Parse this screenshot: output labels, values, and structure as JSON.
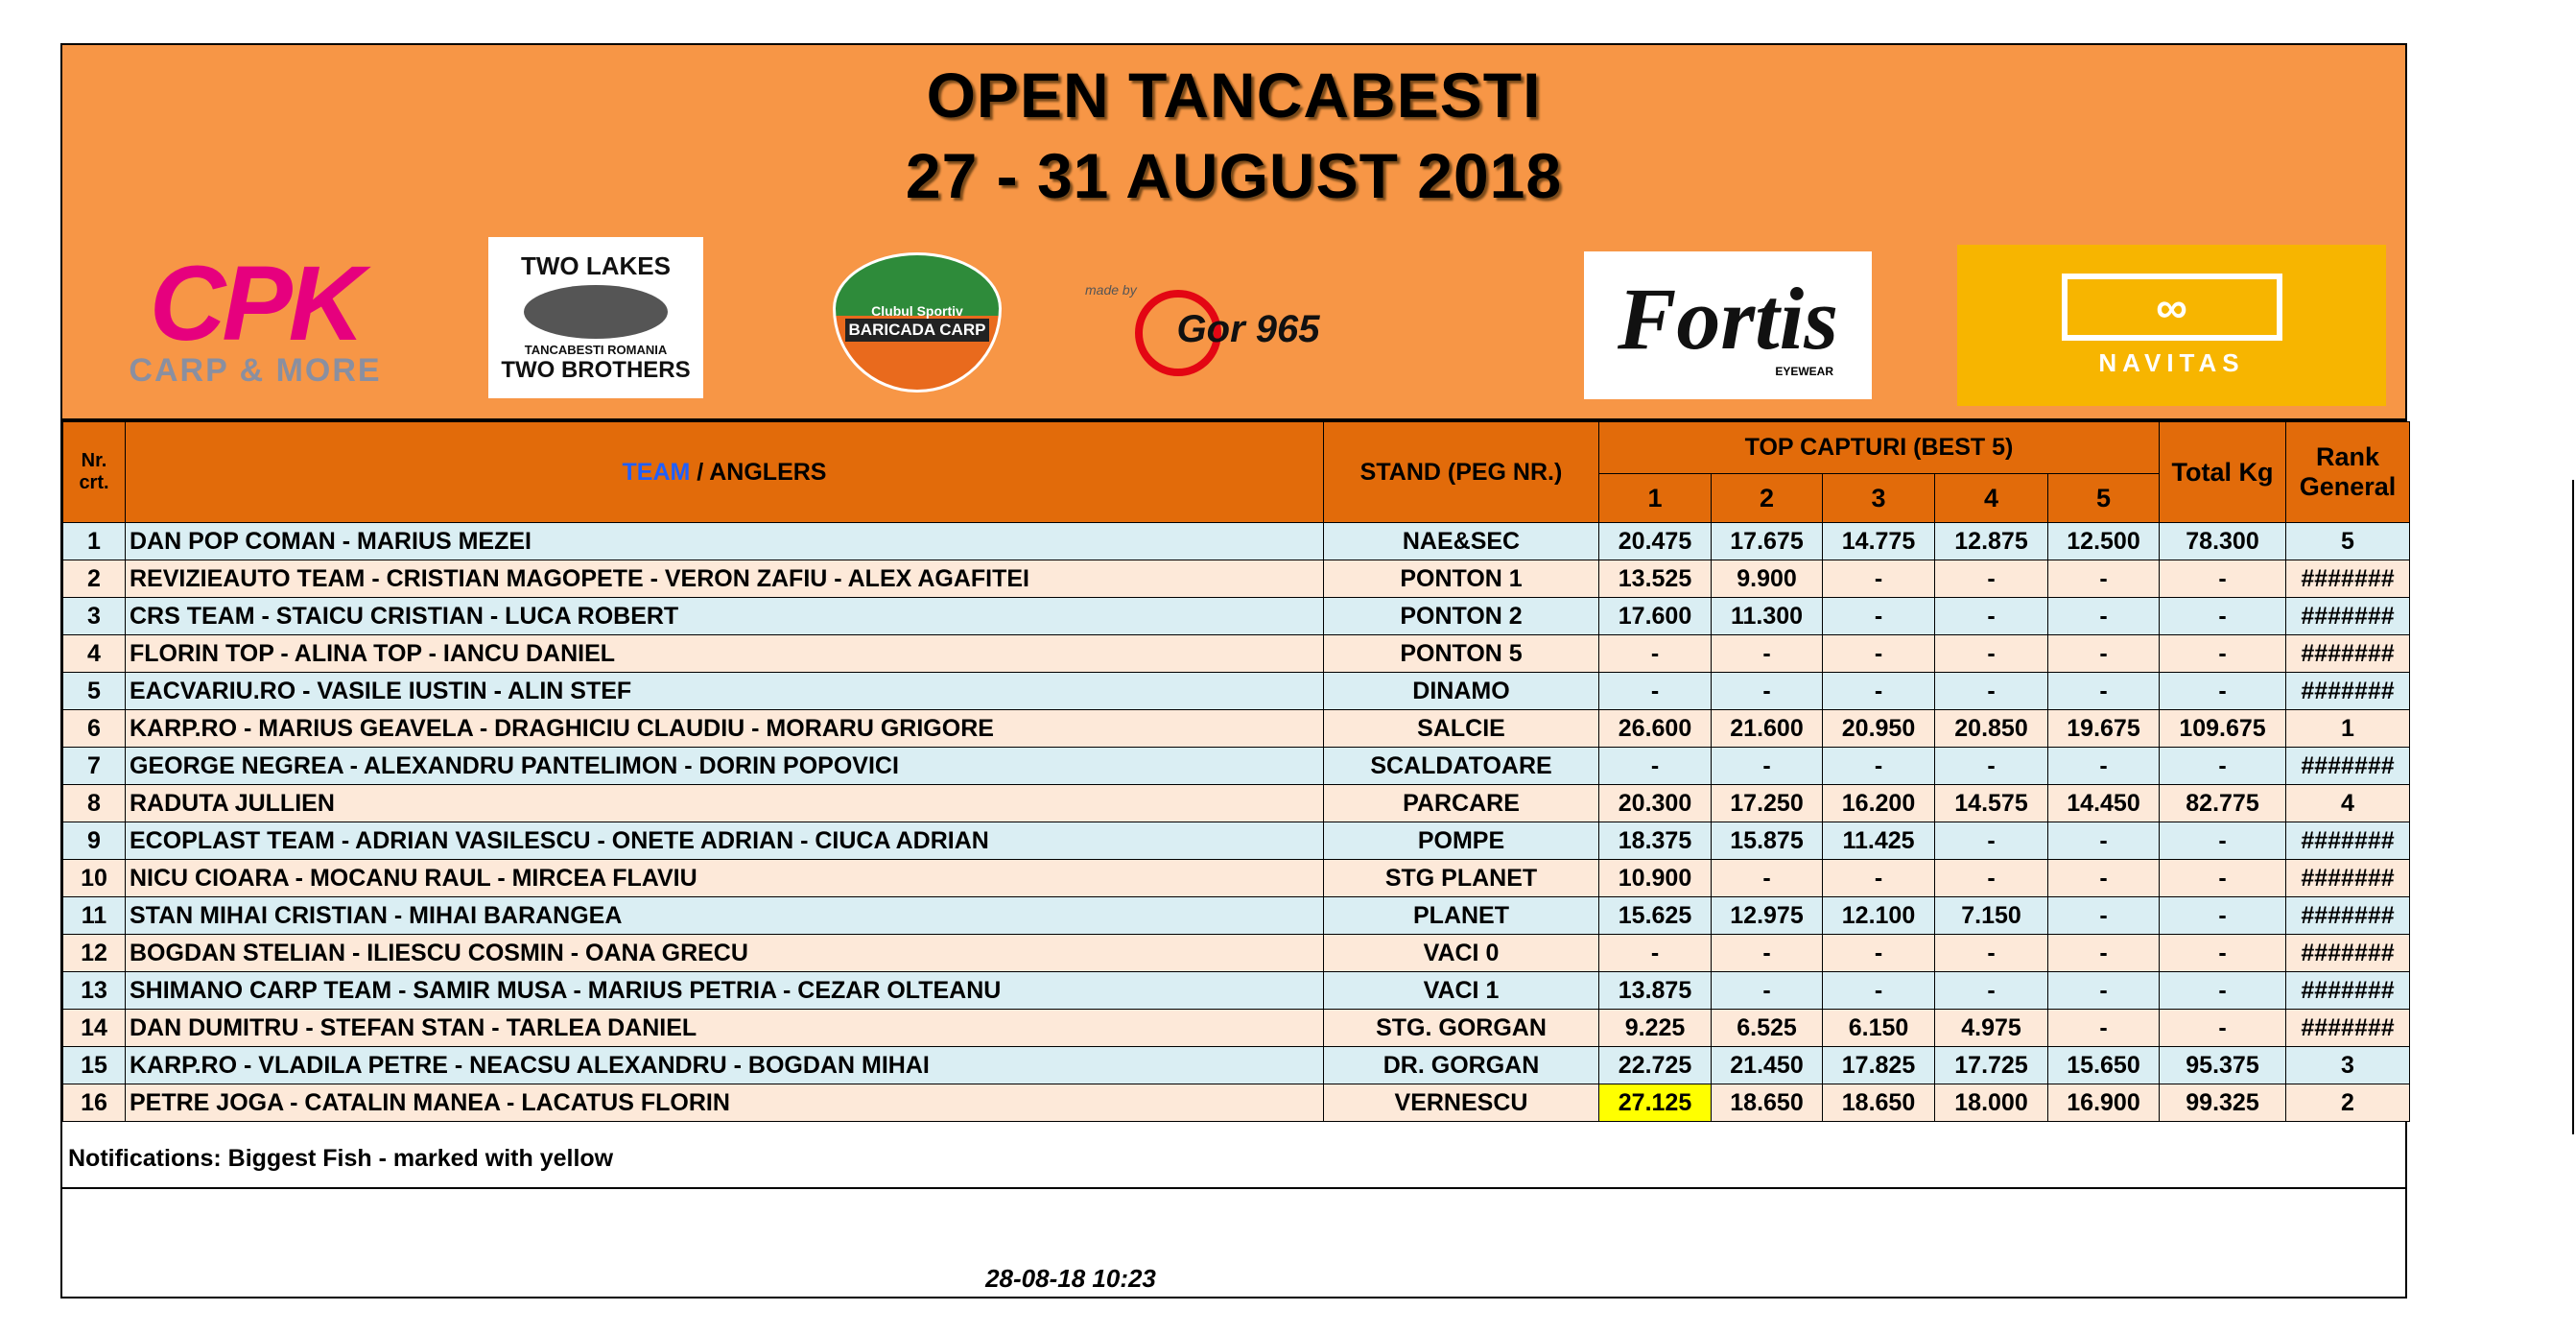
{
  "title": {
    "line1": "OPEN TANCABESTI",
    "line2": "27 - 31 AUGUST 2018"
  },
  "logos": {
    "cpk": {
      "main": "CPK",
      "sub": "CARP & MORE"
    },
    "two_lakes": {
      "top": "TWO LAKES",
      "mid": "TANCABESTI ROMANIA",
      "bottom": "TWO BROTHERS"
    },
    "baricada": {
      "top": "Clubul Sportiv",
      "main": "BARICADA CARP"
    },
    "gor": {
      "pre": "made by",
      "main": "Gor 965"
    },
    "fortis": {
      "main": "Fortis",
      "sub": "EYEWEAR"
    },
    "navitas": {
      "main": "NAVITAS"
    }
  },
  "colors": {
    "header": "#E26B0A",
    "banner": "#F79646",
    "row_blue": "#DAEEF3",
    "row_peach": "#FDE9D9",
    "highlight": "#FFFF00",
    "team_word": "#1F5FFF"
  },
  "table": {
    "headers": {
      "nr": "Nr. crt.",
      "team": "TEAM",
      "anglers": " / ANGLERS",
      "stand": "STAND (PEG NR.)",
      "top": "TOP CAPTURI (BEST 5)",
      "catches": [
        "1",
        "2",
        "3",
        "4",
        "5"
      ],
      "total": "Total Kg",
      "rank": "Rank General"
    },
    "rows": [
      {
        "nr": "1",
        "team": "DAN POP COMAN - MARIUS MEZEI",
        "stand": "NAE&SEC",
        "c": [
          "20.475",
          "17.675",
          "14.775",
          "12.875",
          "12.500"
        ],
        "total": "78.300",
        "rank": "5"
      },
      {
        "nr": "2",
        "team": "REVIZIEAUTO TEAM - CRISTIAN MAGOPETE - VERON ZAFIU - ALEX AGAFITEI",
        "stand": "PONTON 1",
        "c": [
          "13.525",
          "9.900",
          "-",
          "-",
          "-"
        ],
        "total": "-",
        "rank": "#######"
      },
      {
        "nr": "3",
        "team": "CRS TEAM - STAICU CRISTIAN  - LUCA ROBERT",
        "stand": "PONTON 2",
        "c": [
          "17.600",
          "11.300",
          "-",
          "-",
          "-"
        ],
        "total": "-",
        "rank": "#######"
      },
      {
        "nr": "4",
        "team": "FLORIN TOP - ALINA TOP - IANCU DANIEL",
        "stand": "PONTON 5",
        "c": [
          "-",
          "-",
          "-",
          "-",
          "-"
        ],
        "total": "-",
        "rank": "#######"
      },
      {
        "nr": "5",
        "team": "EACVARIU.RO - VASILE IUSTIN - ALIN STEF",
        "stand": "DINAMO",
        "c": [
          "-",
          "-",
          "-",
          "-",
          "-"
        ],
        "total": "-",
        "rank": "#######"
      },
      {
        "nr": "6",
        "team": "KARP.RO - MARIUS GEAVELA - DRAGHICIU CLAUDIU - MORARU GRIGORE",
        "stand": "SALCIE",
        "c": [
          "26.600",
          "21.600",
          "20.950",
          "20.850",
          "19.675"
        ],
        "total": "109.675",
        "rank": "1"
      },
      {
        "nr": "7",
        "team": "GEORGE NEGREA - ALEXANDRU PANTELIMON - DORIN POPOVICI",
        "stand": "SCALDATOARE",
        "c": [
          "-",
          "-",
          "-",
          "-",
          "-"
        ],
        "total": "-",
        "rank": "#######"
      },
      {
        "nr": "8",
        "team": "RADUTA JULLIEN",
        "stand": "PARCARE",
        "c": [
          "20.300",
          "17.250",
          "16.200",
          "14.575",
          "14.450"
        ],
        "total": "82.775",
        "rank": "4"
      },
      {
        "nr": "9",
        "team": "ECOPLAST TEAM - ADRIAN VASILESCU - ONETE ADRIAN - CIUCA ADRIAN",
        "stand": "POMPE",
        "c": [
          "18.375",
          "15.875",
          "11.425",
          "-",
          "-"
        ],
        "total": "-",
        "rank": "#######"
      },
      {
        "nr": "10",
        "team": "NICU CIOARA - MOCANU RAUL - MIRCEA FLAVIU",
        "stand": "STG PLANET",
        "c": [
          "10.900",
          "-",
          "-",
          "-",
          "-"
        ],
        "total": "-",
        "rank": "#######"
      },
      {
        "nr": "11",
        "team": "STAN MIHAI CRISTIAN -  MIHAI BARANGEA",
        "stand": "PLANET",
        "c": [
          "15.625",
          "12.975",
          "12.100",
          "7.150",
          "-"
        ],
        "total": "-",
        "rank": "#######"
      },
      {
        "nr": "12",
        "team": "BOGDAN STELIAN - ILIESCU COSMIN - OANA GRECU",
        "stand": "VACI 0",
        "c": [
          "-",
          "-",
          "-",
          "-",
          "-"
        ],
        "total": "-",
        "rank": "#######"
      },
      {
        "nr": "13",
        "team": "SHIMANO CARP TEAM - SAMIR MUSA - MARIUS PETRIA - CEZAR OLTEANU",
        "stand": "VACI 1",
        "c": [
          "13.875",
          "-",
          "-",
          "-",
          "-"
        ],
        "total": "-",
        "rank": "#######"
      },
      {
        "nr": "14",
        "team": "DAN DUMITRU - STEFAN STAN - TARLEA DANIEL",
        "stand": "STG. GORGAN",
        "c": [
          "9.225",
          "6.525",
          "6.150",
          "4.975",
          "-"
        ],
        "total": "-",
        "rank": "#######"
      },
      {
        "nr": "15",
        "team": "KARP.RO - VLADILA PETRE - NEACSU ALEXANDRU - BOGDAN MIHAI",
        "stand": "DR. GORGAN",
        "c": [
          "22.725",
          "21.450",
          "17.825",
          "17.725",
          "15.650"
        ],
        "total": "95.375",
        "rank": "3"
      },
      {
        "nr": "16",
        "team": "PETRE JOGA - CATALIN MANEA - LACATUS FLORIN",
        "stand": "VERNESCU",
        "c": [
          "27.125",
          "18.650",
          "18.650",
          "18.000",
          "16.900"
        ],
        "total": "99.325",
        "rank": "2",
        "biggest_fish_col": 0
      }
    ]
  },
  "notifications": "Notifications:  Biggest Fish - marked with yellow",
  "timestamp": "28-08-18 10:23"
}
